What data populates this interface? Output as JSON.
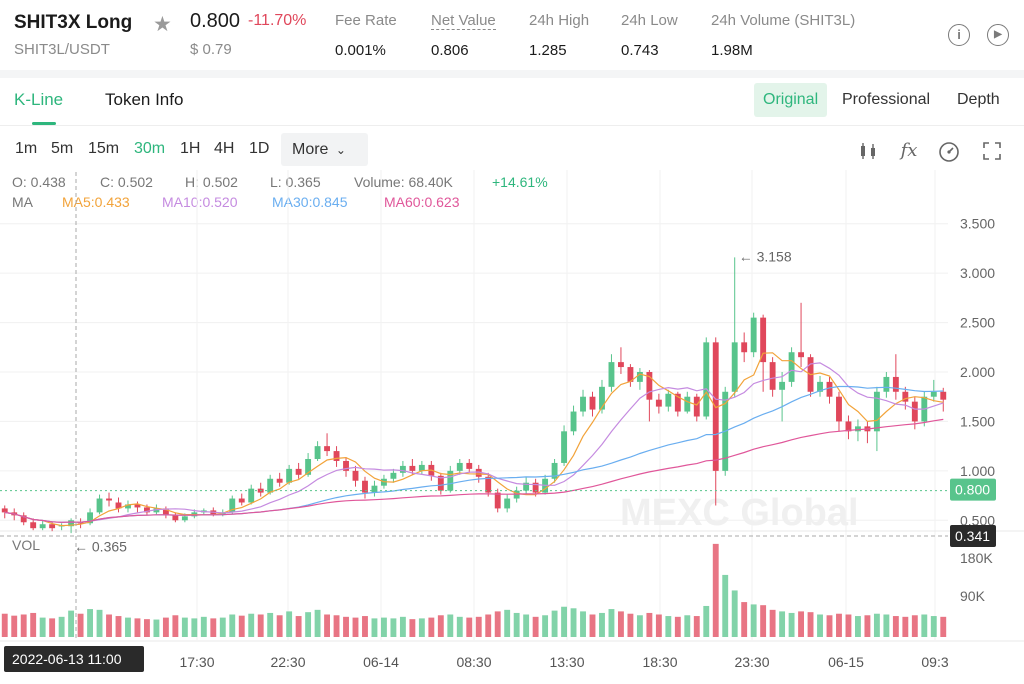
{
  "header": {
    "title": "SHIT3X Long",
    "pair": "SHIT3L/USDT",
    "price": "0.800",
    "change": "-11.70%",
    "usd_price": "$ 0.79",
    "stats": [
      {
        "label": "Fee Rate",
        "value": "0.001%"
      },
      {
        "label": "Net Value",
        "value": "0.806"
      },
      {
        "label": "24h High",
        "value": "1.285"
      },
      {
        "label": "24h Low",
        "value": "0.743"
      },
      {
        "label": "24h Volume (SHIT3L)",
        "value": "1.98M"
      }
    ]
  },
  "tabs": {
    "kline": "K-Line",
    "token_info": "Token Info"
  },
  "views": {
    "original": "Original",
    "professional": "Professional",
    "depth": "Depth"
  },
  "intervals": [
    "1m",
    "5m",
    "15m",
    "30m",
    "1H",
    "4H",
    "1D"
  ],
  "active_interval": "30m",
  "more_label": "More",
  "ohlc": {
    "open": "O: 0.438",
    "close": "C: 0.502",
    "high": "H: 0.502",
    "low": "L: 0.365",
    "volume": "Volume: 68.40K",
    "change": "+14.61%"
  },
  "ma_legend": {
    "ma": "MA",
    "ma5": "MA5:0.433",
    "ma10": "MA10:0.520",
    "ma30": "MA30:0.845",
    "ma60": "MA60:0.623"
  },
  "colors": {
    "up": "#58c48c",
    "down": "#e0475b",
    "ma5": "#f2a33a",
    "ma10": "#c58be0",
    "ma30": "#6aaef0",
    "ma60": "#e0579a",
    "accent": "#2eb67d"
  },
  "watermark": "MEXC Global",
  "crosshair_time": "2022-06-13 11:00",
  "chart_data": {
    "type": "candlestick",
    "y_axis": [
      "3.500",
      "3.000",
      "2.500",
      "2.000",
      "1.500",
      "1.000",
      "0.500"
    ],
    "ylim": [
      0.25,
      3.75
    ],
    "x_ticks": [
      "17:30",
      "22:30",
      "06-14",
      "08:30",
      "13:30",
      "18:30",
      "23:30",
      "06-15",
      "09:3"
    ],
    "current_price_label": "0.800",
    "crosshair_price_label": "0.341",
    "max_label": "3.158",
    "min_label": "0.365",
    "volume_label": "VOL",
    "volume_ticks": [
      "180K",
      "90K"
    ],
    "volume_ylim": [
      0,
      250
    ],
    "candles": [
      [
        0.62,
        0.58,
        0.65,
        0.52,
        60
      ],
      [
        0.58,
        0.55,
        0.62,
        0.5,
        55
      ],
      [
        0.55,
        0.48,
        0.58,
        0.45,
        58
      ],
      [
        0.48,
        0.42,
        0.52,
        0.4,
        62
      ],
      [
        0.42,
        0.46,
        0.5,
        0.4,
        50
      ],
      [
        0.46,
        0.42,
        0.49,
        0.39,
        48
      ],
      [
        0.44,
        0.45,
        0.47,
        0.4,
        52
      ],
      [
        0.44,
        0.5,
        0.52,
        0.37,
        68
      ],
      [
        0.48,
        0.47,
        0.52,
        0.42,
        60
      ],
      [
        0.47,
        0.58,
        0.62,
        0.45,
        72
      ],
      [
        0.58,
        0.72,
        0.76,
        0.56,
        70
      ],
      [
        0.72,
        0.7,
        0.78,
        0.64,
        58
      ],
      [
        0.68,
        0.62,
        0.73,
        0.58,
        54
      ],
      [
        0.62,
        0.66,
        0.7,
        0.58,
        50
      ],
      [
        0.66,
        0.63,
        0.69,
        0.58,
        48
      ],
      [
        0.63,
        0.58,
        0.66,
        0.55,
        46
      ],
      [
        0.58,
        0.62,
        0.66,
        0.56,
        45
      ],
      [
        0.62,
        0.55,
        0.64,
        0.52,
        50
      ],
      [
        0.55,
        0.5,
        0.58,
        0.48,
        56
      ],
      [
        0.5,
        0.54,
        0.57,
        0.48,
        50
      ],
      [
        0.54,
        0.58,
        0.61,
        0.52,
        48
      ],
      [
        0.58,
        0.6,
        0.62,
        0.55,
        52
      ],
      [
        0.6,
        0.56,
        0.63,
        0.54,
        48
      ],
      [
        0.56,
        0.58,
        0.61,
        0.54,
        50
      ],
      [
        0.58,
        0.72,
        0.75,
        0.56,
        58
      ],
      [
        0.72,
        0.68,
        0.77,
        0.65,
        55
      ],
      [
        0.68,
        0.82,
        0.86,
        0.66,
        60
      ],
      [
        0.82,
        0.78,
        0.88,
        0.74,
        58
      ],
      [
        0.78,
        0.92,
        0.96,
        0.76,
        62
      ],
      [
        0.92,
        0.88,
        0.98,
        0.84,
        56
      ],
      [
        0.88,
        1.02,
        1.06,
        0.86,
        66
      ],
      [
        1.02,
        0.96,
        1.08,
        0.92,
        54
      ],
      [
        0.96,
        1.12,
        1.18,
        0.94,
        64
      ],
      [
        1.12,
        1.25,
        1.3,
        1.1,
        70
      ],
      [
        1.25,
        1.2,
        1.38,
        1.15,
        58
      ],
      [
        1.2,
        1.1,
        1.25,
        1.04,
        56
      ],
      [
        1.1,
        1.0,
        1.14,
        0.94,
        52
      ],
      [
        1.0,
        0.9,
        1.05,
        0.84,
        50
      ],
      [
        0.9,
        0.78,
        0.94,
        0.72,
        54
      ],
      [
        0.78,
        0.85,
        0.9,
        0.74,
        48
      ],
      [
        0.85,
        0.92,
        0.96,
        0.82,
        50
      ],
      [
        0.92,
        0.98,
        1.02,
        0.88,
        48
      ],
      [
        0.98,
        1.05,
        1.1,
        0.94,
        52
      ],
      [
        1.05,
        1.0,
        1.12,
        0.96,
        46
      ],
      [
        1.0,
        1.06,
        1.1,
        0.96,
        48
      ],
      [
        1.06,
        0.95,
        1.1,
        0.9,
        50
      ],
      [
        0.95,
        0.8,
        0.98,
        0.76,
        56
      ],
      [
        0.8,
        1.0,
        1.05,
        0.78,
        58
      ],
      [
        1.0,
        1.08,
        1.12,
        0.96,
        52
      ],
      [
        1.08,
        1.02,
        1.12,
        0.98,
        50
      ],
      [
        1.02,
        0.94,
        1.06,
        0.88,
        52
      ],
      [
        0.94,
        0.78,
        0.98,
        0.74,
        58
      ],
      [
        0.78,
        0.62,
        0.82,
        0.58,
        66
      ],
      [
        0.62,
        0.72,
        0.76,
        0.58,
        70
      ],
      [
        0.72,
        0.8,
        0.84,
        0.68,
        62
      ],
      [
        0.8,
        0.88,
        0.94,
        0.76,
        58
      ],
      [
        0.88,
        0.78,
        0.92,
        0.74,
        52
      ],
      [
        0.78,
        0.92,
        0.96,
        0.76,
        56
      ],
      [
        0.92,
        1.08,
        1.12,
        0.88,
        68
      ],
      [
        1.08,
        1.4,
        1.46,
        1.05,
        78
      ],
      [
        1.4,
        1.6,
        1.66,
        1.36,
        74
      ],
      [
        1.6,
        1.75,
        1.82,
        1.55,
        66
      ],
      [
        1.75,
        1.62,
        1.8,
        1.55,
        58
      ],
      [
        1.62,
        1.85,
        1.92,
        1.58,
        62
      ],
      [
        1.85,
        2.1,
        2.18,
        1.8,
        72
      ],
      [
        2.1,
        2.05,
        2.25,
        1.98,
        66
      ],
      [
        2.05,
        1.9,
        2.08,
        1.85,
        60
      ],
      [
        1.9,
        2.0,
        2.04,
        1.82,
        56
      ],
      [
        2.0,
        1.72,
        2.02,
        1.5,
        62
      ],
      [
        1.72,
        1.65,
        1.78,
        1.58,
        58
      ],
      [
        1.65,
        1.78,
        1.82,
        1.6,
        54
      ],
      [
        1.78,
        1.6,
        1.8,
        1.55,
        52
      ],
      [
        1.6,
        1.75,
        1.8,
        1.58,
        56
      ],
      [
        1.75,
        1.55,
        1.78,
        1.5,
        54
      ],
      [
        1.55,
        2.3,
        2.35,
        1.52,
        80
      ],
      [
        2.3,
        1.0,
        2.35,
        0.65,
        240
      ],
      [
        1.0,
        1.8,
        1.85,
        0.95,
        160
      ],
      [
        1.8,
        2.3,
        3.16,
        1.75,
        120
      ],
      [
        2.3,
        2.2,
        2.4,
        2.1,
        90
      ],
      [
        2.2,
        2.55,
        2.6,
        2.15,
        84
      ],
      [
        2.55,
        2.1,
        2.58,
        1.8,
        82
      ],
      [
        2.1,
        1.82,
        2.15,
        1.75,
        70
      ],
      [
        1.82,
        1.9,
        2.0,
        1.5,
        66
      ],
      [
        1.9,
        2.2,
        2.25,
        1.85,
        62
      ],
      [
        2.2,
        2.15,
        2.7,
        2.05,
        66
      ],
      [
        2.15,
        1.8,
        2.18,
        1.75,
        64
      ],
      [
        1.8,
        1.9,
        1.96,
        1.75,
        58
      ],
      [
        1.9,
        1.75,
        1.95,
        1.68,
        56
      ],
      [
        1.75,
        1.5,
        1.8,
        1.4,
        60
      ],
      [
        1.5,
        1.4,
        1.56,
        1.32,
        58
      ],
      [
        1.4,
        1.45,
        1.52,
        1.3,
        54
      ],
      [
        1.45,
        1.4,
        1.5,
        1.28,
        56
      ],
      [
        1.4,
        1.8,
        1.85,
        1.2,
        60
      ],
      [
        1.8,
        1.95,
        2.0,
        1.74,
        58
      ],
      [
        1.95,
        1.8,
        2.18,
        1.72,
        54
      ],
      [
        1.8,
        1.7,
        1.85,
        1.62,
        52
      ],
      [
        1.7,
        1.5,
        1.75,
        1.42,
        56
      ],
      [
        1.5,
        1.75,
        1.8,
        1.45,
        58
      ],
      [
        1.75,
        1.8,
        1.92,
        1.7,
        54
      ],
      [
        1.8,
        1.72,
        1.84,
        1.6,
        52
      ]
    ]
  }
}
